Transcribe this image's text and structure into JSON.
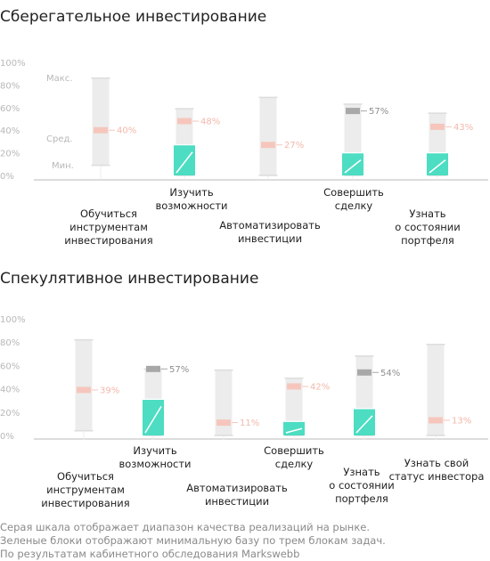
{
  "colors": {
    "range": "#ececec",
    "green": "#4cddc2",
    "median_normal": "#f6c6bc",
    "median_dark": "#a8a8a8",
    "text": "#222222",
    "tick": "#b8b8b8",
    "footnote": "#8a8a8a"
  },
  "chart_data": [
    {
      "type": "bar",
      "title": "Сберегательное инвестирование",
      "ylim": [
        0,
        100
      ],
      "yticks": [
        "0%",
        "20%",
        "40%",
        "60%",
        "80%",
        "100%"
      ],
      "legend_labels": [
        "Макс.",
        "Сред.",
        "Мин."
      ],
      "grid": false,
      "categories": [
        {
          "label": [
            "Обучиться",
            "инструментам",
            "инвестирования"
          ],
          "min": 9,
          "max": 86,
          "median": 40,
          "median_label": "40%",
          "median_style": "normal",
          "green": null
        },
        {
          "label": [
            "Изучить",
            "возможности"
          ],
          "min": 0,
          "max": 59,
          "median": 48,
          "median_label": "48%",
          "median_style": "normal",
          "green": 27
        },
        {
          "label": [
            "Автоматизировать",
            "инвестиции"
          ],
          "min": 0,
          "max": 69,
          "median": 27,
          "median_label": "27%",
          "median_style": "normal",
          "green": null
        },
        {
          "label": [
            "Совершить",
            "сделку"
          ],
          "min": 0,
          "max": 63,
          "median": 57,
          "median_label": "57%",
          "median_style": "dark",
          "green": 20
        },
        {
          "label": [
            "Узнать",
            "о состоянии",
            "портфеля"
          ],
          "min": 0,
          "max": 55,
          "median": 43,
          "median_label": "43%",
          "median_style": "normal",
          "green": 20
        }
      ]
    },
    {
      "type": "bar",
      "title": "Спекулятивное инвестирование",
      "ylim": [
        0,
        100
      ],
      "yticks": [
        "0%",
        "20%",
        "40%",
        "60%",
        "80%",
        "100%"
      ],
      "grid": false,
      "categories": [
        {
          "label": [
            "Обучиться",
            "инструментам",
            "инвестирования"
          ],
          "min": 4,
          "max": 82,
          "median": 39,
          "median_label": "39%",
          "median_style": "normal",
          "green": null
        },
        {
          "label": [
            "Изучить",
            "возможности"
          ],
          "min": 0,
          "max": 57,
          "median": 57,
          "median_label": "57%",
          "median_style": "dark",
          "green": 31
        },
        {
          "label": [
            "Автоматизировать",
            "инвестиции"
          ],
          "min": 0,
          "max": 56,
          "median": 11,
          "median_label": "11%",
          "median_style": "normal",
          "green": null
        },
        {
          "label": [
            "Совершить",
            "сделку"
          ],
          "min": 0,
          "max": 49,
          "median": 42,
          "median_label": "42%",
          "median_style": "normal",
          "green": 12
        },
        {
          "label": [
            "Узнать",
            "о состоянии",
            "портфеля"
          ],
          "min": 0,
          "max": 68,
          "median": 54,
          "median_label": "54%",
          "median_style": "dark",
          "green": 23
        },
        {
          "label": [
            "Узнать свой",
            "статус инвестора"
          ],
          "min": 0,
          "max": 78,
          "median": 13,
          "median_label": "13%",
          "median_style": "normal",
          "green": null
        }
      ]
    }
  ],
  "footnotes": [
    "Серая шкала отображает диапазон качества реализаций на рынке.",
    "Зеленые блоки отображают минимальную базу по трем блокам задач.",
    "По результатам кабинетного обследования Markswebb"
  ]
}
